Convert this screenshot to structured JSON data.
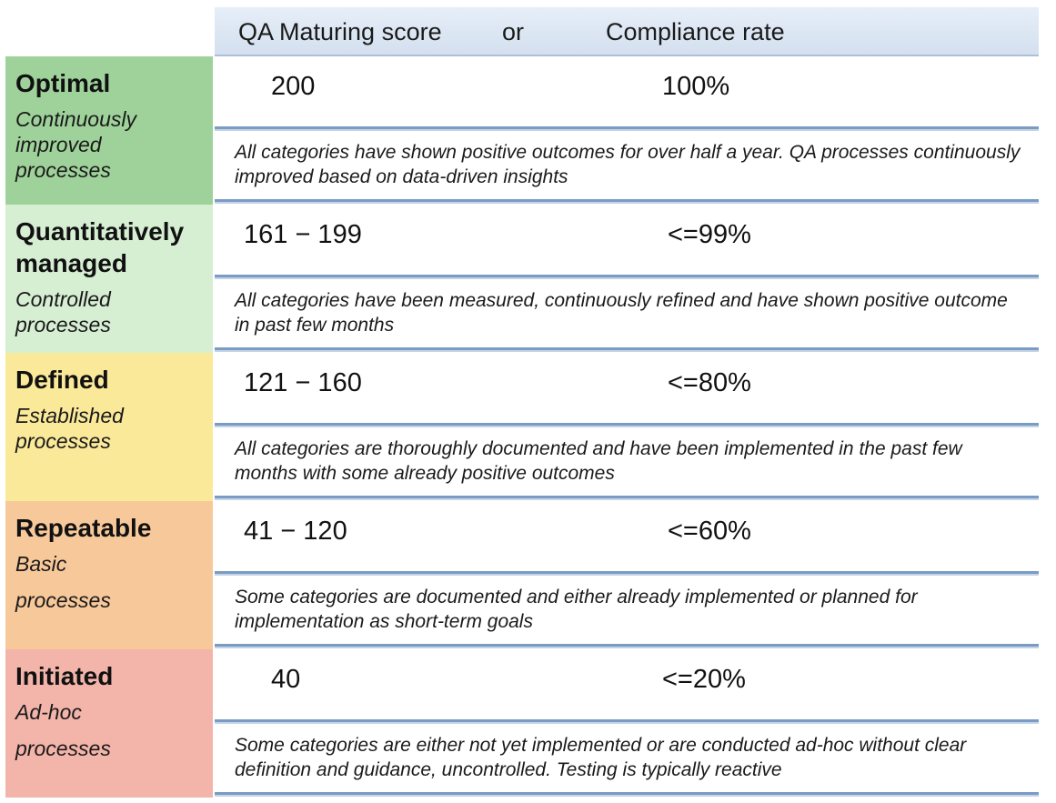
{
  "header": {
    "score_label": "QA Maturing score",
    "or_label": "or",
    "rate_label": "Compliance rate"
  },
  "levels": [
    {
      "name": "Optimal",
      "subtitle": "Continuously improved processes",
      "score": "200",
      "rate": "100%",
      "description": "All categories have shown positive outcomes for over half a year. QA processes continuously improved based on data-driven insights",
      "color": "#9fd29a"
    },
    {
      "name": "Quantitatively managed",
      "subtitle": "Controlled processes",
      "score": "161 − 199",
      "rate": "<=99%",
      "description": "All categories have been measured, continuously refined and have shown positive outcome in past few months",
      "color": "#d6efd3"
    },
    {
      "name": "Defined",
      "subtitle": "Established processes",
      "score": "121 − 160",
      "rate": "<=80%",
      "description": "All categories are thoroughly documented and have been implemented in the past few months with some already positive outcomes",
      "color": "#fbe99a"
    },
    {
      "name": "Repeatable",
      "subtitle": "Basic processes",
      "score": "41 − 120",
      "rate": "<=60%",
      "description": "Some categories are documented and either already implemented or planned for implementation as short-term goals",
      "color": "#f7c89a"
    },
    {
      "name": "Initiated",
      "subtitle": "Ad-hoc processes",
      "score": "40",
      "rate": "<=20%",
      "description": "Some categories are either not yet implemented or are conducted ad-hoc without clear definition and guidance, uncontrolled. Testing is typically reactive",
      "color": "#f3b4aa"
    }
  ]
}
